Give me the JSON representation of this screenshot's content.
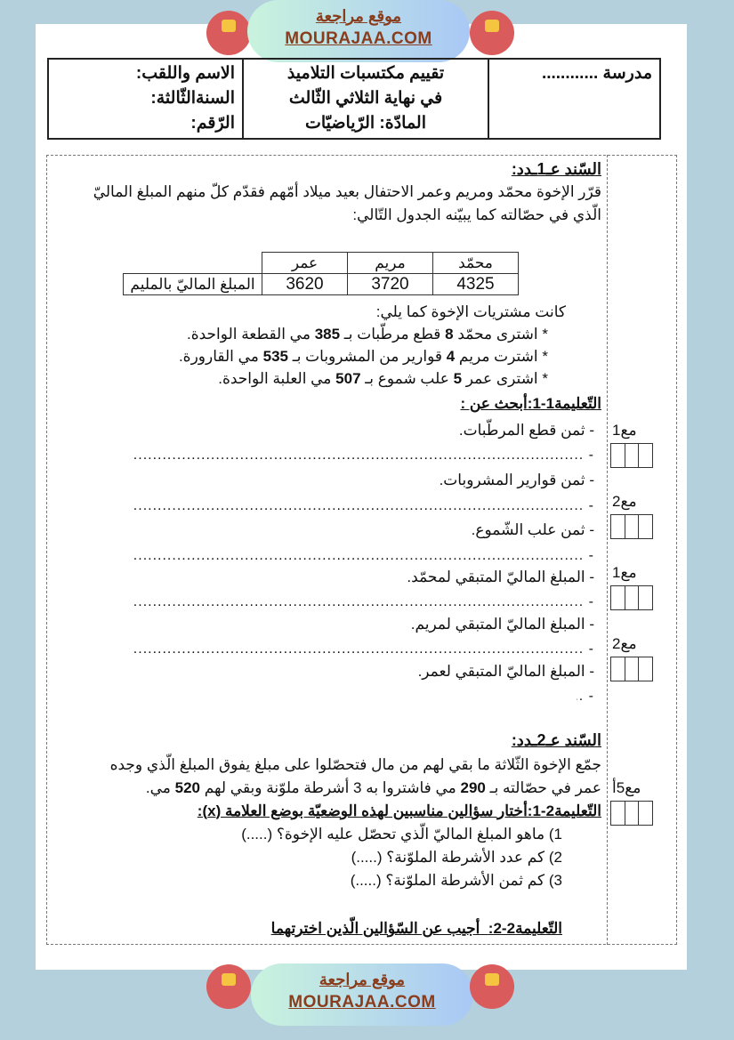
{
  "watermark": {
    "arabic": "موقع مراجعة",
    "latin": "MOURAJAA.COM",
    "logo_text": "موقع مراجعة mourajaa.com"
  },
  "header": {
    "school": "مدرسة ............",
    "title_lines": [
      "تقييم مكتسبات التلاميذ",
      "في نهاية  الثلاثي الثّالث",
      "المادّة: الرّياضيّات"
    ],
    "student_fields": [
      "الاسم واللقب:",
      "السنةالثّالثة:",
      "الرّقم:"
    ]
  },
  "section1": {
    "title": "السّند عـ1ـدد:",
    "intro": [
      "قرّر الإخوة محمّد ومريم وعمر الاحتفال بعيد ميلاد أمّهم فقدّم كلّ منهم المبلغ الماليّ",
      "الّذي في حصّالته كما يبيّنه الجدول التّالي:"
    ],
    "table": {
      "row_label": "المبلغ الماليّ بالمليم",
      "headers": [
        "محمّد",
        "مريم",
        "عمر"
      ],
      "values": [
        "4325",
        "3720",
        "3620"
      ]
    },
    "purchases_intro": "كانت مشتريات الإخوة كما يلي:",
    "purchases": [
      [
        "* اشترى محمّد ",
        "8",
        " قطع مرطّبات بـ ",
        "385",
        " مي القطعة الواحدة."
      ],
      [
        "* اشترت مريم ",
        "4",
        " قوارير من المشروبات بـ ",
        "535",
        " مي القارورة."
      ],
      [
        "* اشترى عمر ",
        "5",
        " علب شموع بـ ",
        "507",
        " مي العلبة الواحدة."
      ]
    ],
    "instruction": "التّعليمة1-1:أبحث عن :",
    "questions": [
      "- ثمن قطع المرطّبات.",
      "- ثمن قوارير المشروبات.",
      "- ثمن علب الشّموع.",
      "- المبلغ الماليّ المتبقي لمحمّد.",
      "- المبلغ الماليّ المتبقي لمريم.",
      "- المبلغ الماليّ المتبقي لعمر."
    ],
    "answer_line": "- ......................................................................................................................................"
  },
  "section2": {
    "title": "السّند عـ2ـدد:",
    "text": [
      "جمّع الإخوة الثّلاثة ما بقي لهم من مال فتحصّلوا على مبلغ يفوق المبلغ الّذي وجده",
      [
        "عمر في حصّالته بـ ",
        "290",
        " مي فاشتروا به 3 أشرطة ملوّنة وبقي لهم ",
        "520",
        " مي."
      ]
    ],
    "instruction1": "التّعليمة2-1:أختار سؤالين مناسبين لهذه الوضعيّة بوضع العلامة (x):",
    "choices": [
      "1) ماهو المبلغ الماليّ الّذي تحصّل عليه الإخوة؟ (.....)",
      "2) كم عدد الأشرطة الملوّنة؟ (.....)",
      "3) كم ثمن الأشرطة الملوّنة؟ (.....)"
    ],
    "instruction2_label": "التّعليمة2-2:",
    "instruction2_text": "أجيب عن السّؤالين الّذين اخترتهما"
  },
  "marks": [
    "مع1",
    "مع2",
    "مع1",
    "مع2",
    "مع5أ"
  ]
}
